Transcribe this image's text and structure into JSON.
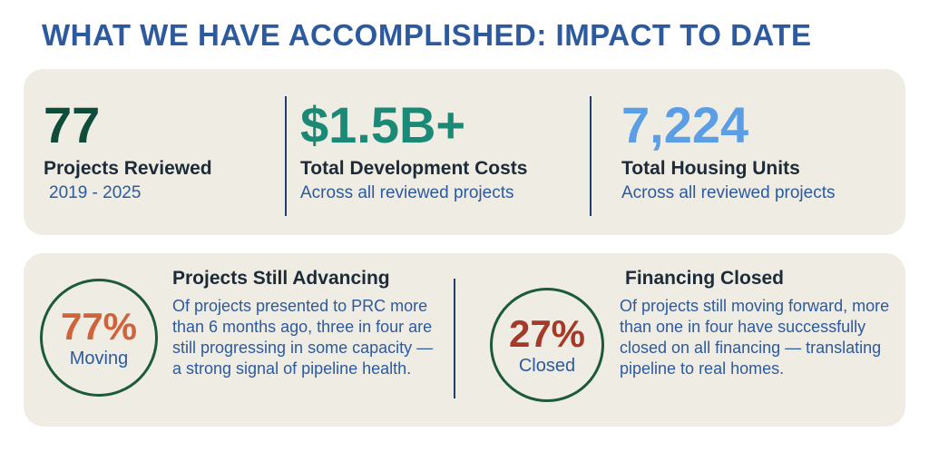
{
  "title": "WHAT WE HAVE ACCOMPLISHED: IMPACT TO DATE",
  "stats": [
    {
      "value": "77",
      "label": "Projects Reviewed",
      "sub": "2019 - 2025",
      "color": "#0f4d3a"
    },
    {
      "value": "$1.5B+",
      "label": "Total Development Costs",
      "sub": "Across all reviewed projects",
      "color": "#1a8a76"
    },
    {
      "value": "7,224",
      "label": "Total Housing Units",
      "sub": "Across all reviewed projects",
      "color": "#5b9ee6"
    }
  ],
  "advancing": {
    "percent": "77%",
    "word": "Moving",
    "title": "Projects Still Advancing",
    "text": "Of projects presented to PRC more than 6 months ago, three in four are still progressing in some capacity — a strong signal of pipeline health.",
    "color": "#d0623c"
  },
  "financing": {
    "percent": "27%",
    "word": "Closed",
    "title": "Financing Closed",
    "text": "Of projects still moving forward, more than one in four have successfully closed on all financing — translating pipeline to real homes.",
    "color": "#a33a2a"
  }
}
